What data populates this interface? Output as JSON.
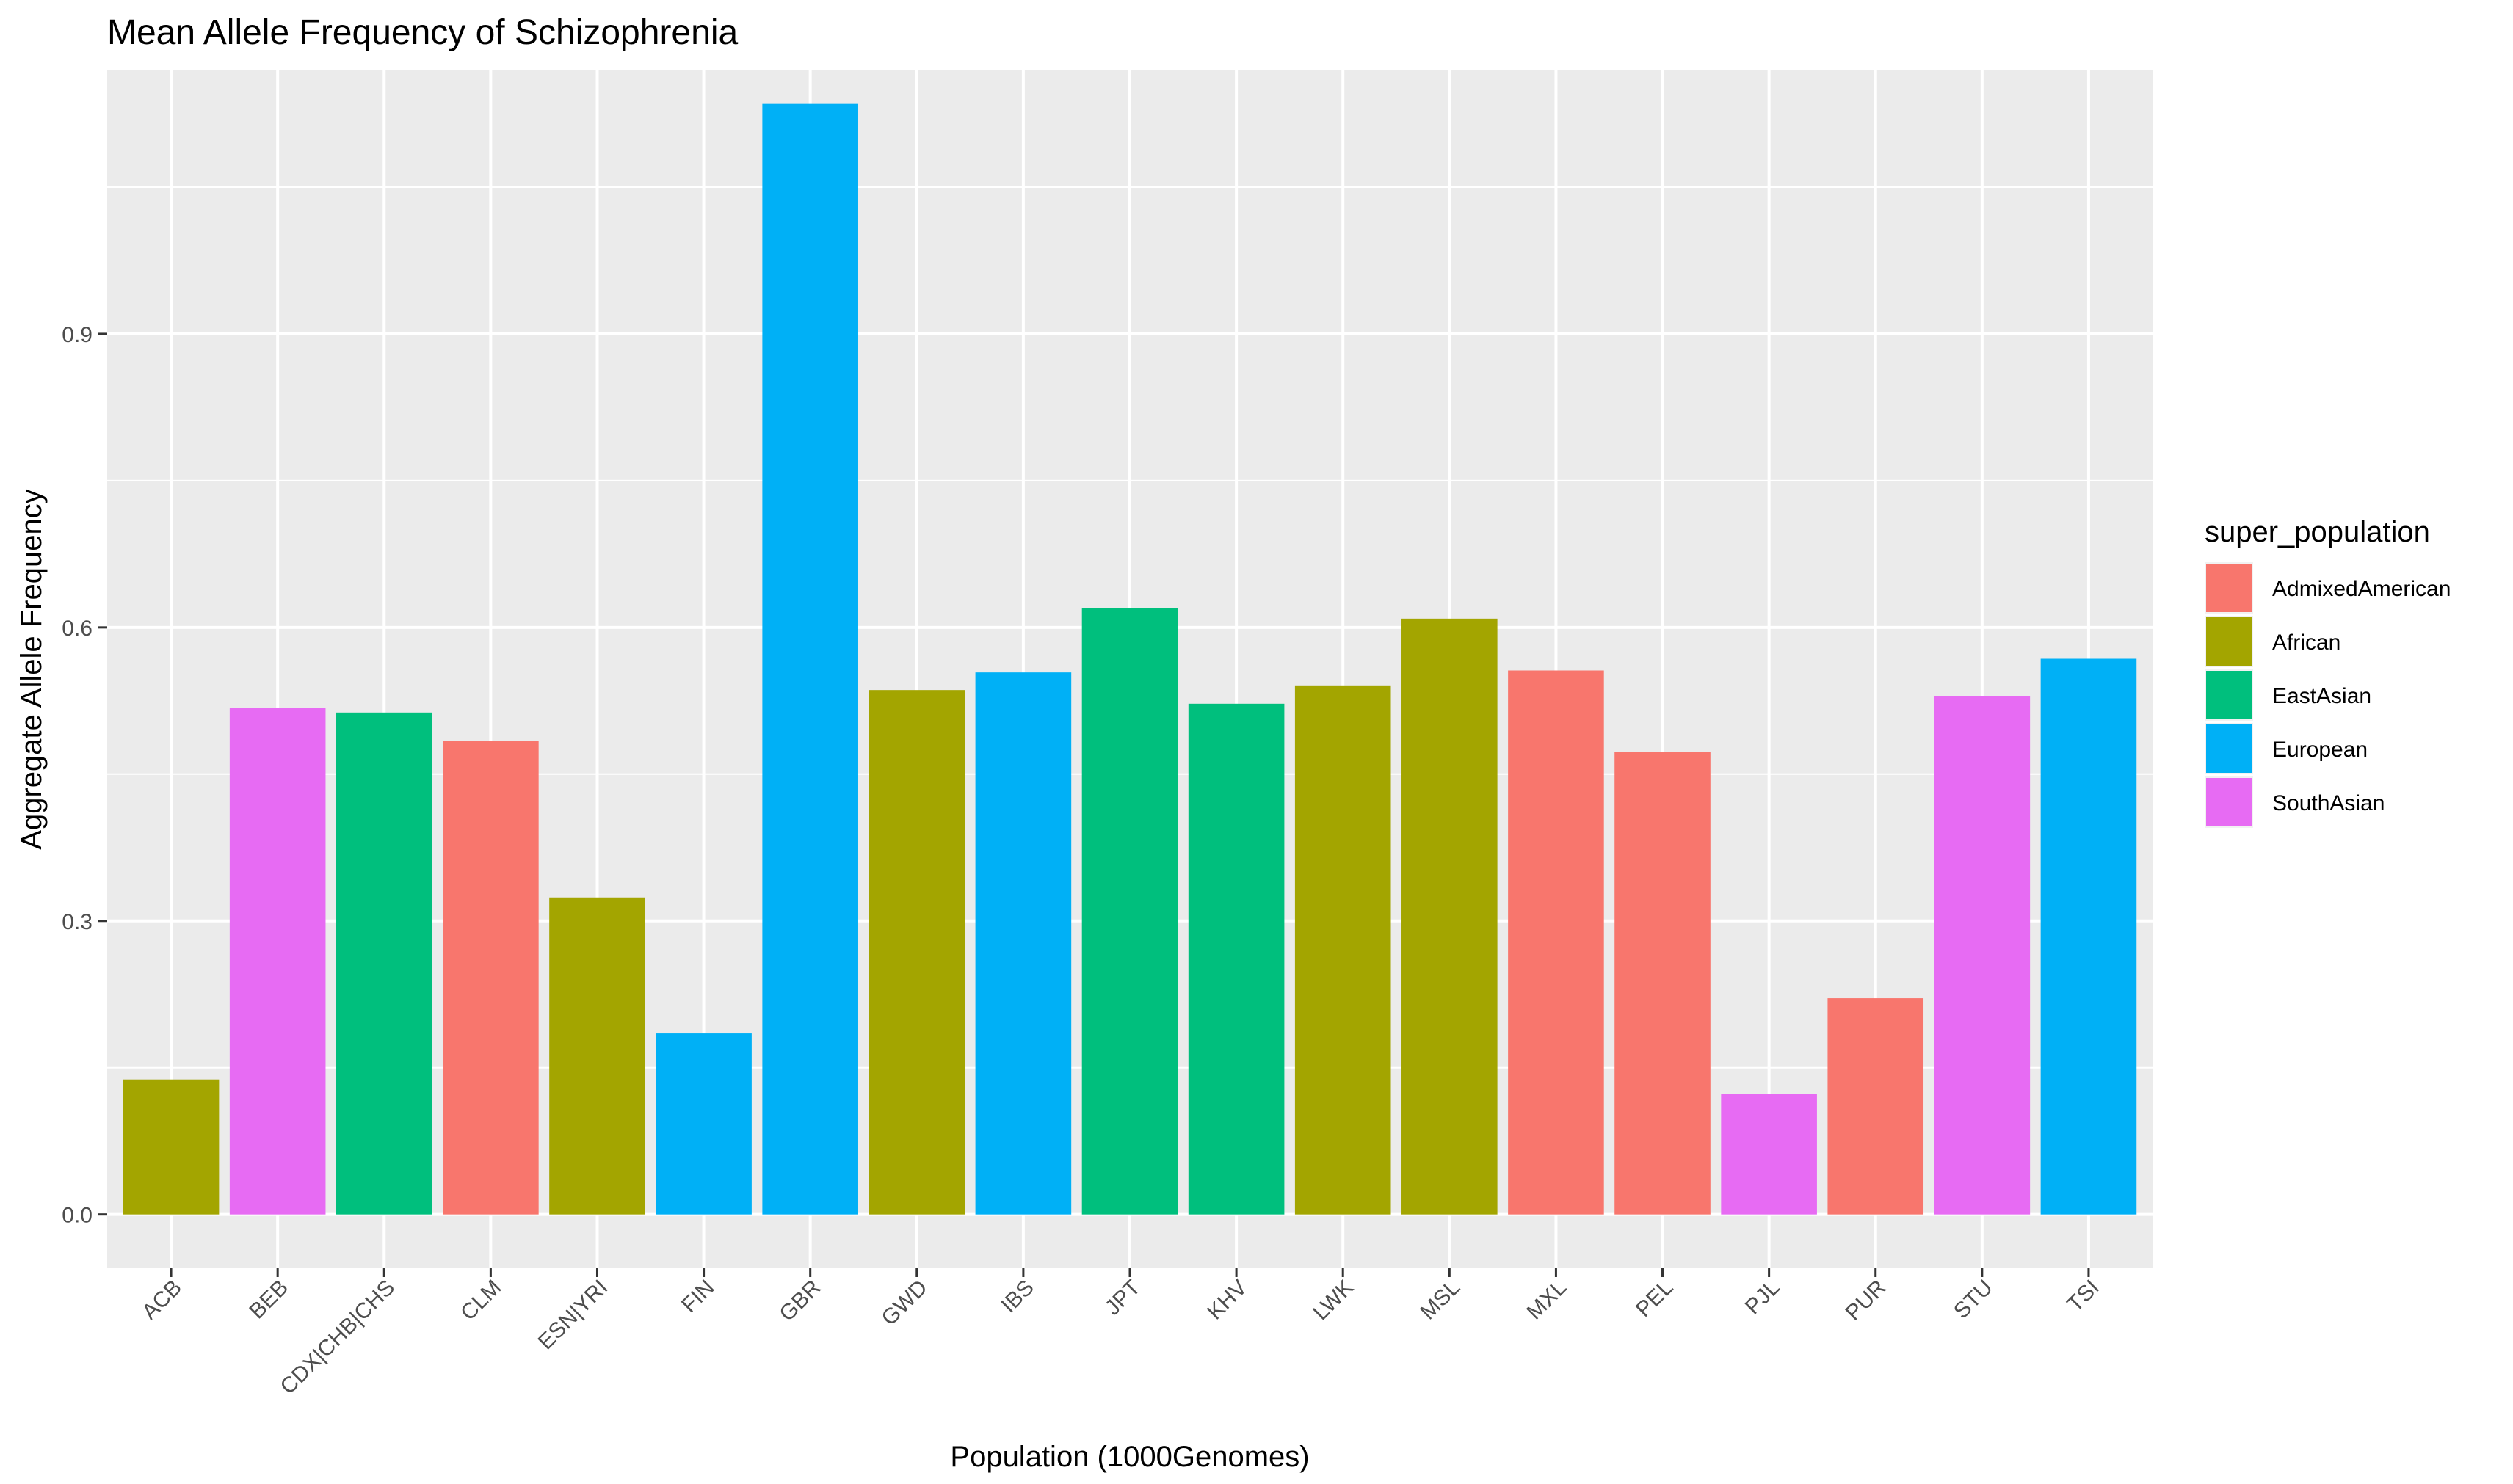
{
  "chart_data": {
    "type": "bar",
    "title": "Mean Allele Frequency of Schizophrenia",
    "xlabel": "Population (1000Genomes)",
    "ylabel": "Aggregate Allele Frequency",
    "ylim": [
      -0.055,
      1.17
    ],
    "yticks": [
      0.0,
      0.3,
      0.6,
      0.9
    ],
    "ytick_labels": [
      "0.0",
      "0.3",
      "0.6",
      "0.9"
    ],
    "grid": true,
    "legend": {
      "title": "super_population",
      "placement": "right",
      "entries": [
        {
          "label": "AdmixedAmerican",
          "color": "#F8766D"
        },
        {
          "label": "African",
          "color": "#A3A500"
        },
        {
          "label": "EastAsian",
          "color": "#00BF7D"
        },
        {
          "label": "European",
          "color": "#00B0F6"
        },
        {
          "label": "SouthAsian",
          "color": "#E76BF3"
        }
      ]
    },
    "categories": [
      "ACB",
      "BEB",
      "CDX|CHB|CHS",
      "CLM",
      "ESN|YRI",
      "FIN",
      "GBR",
      "GWD",
      "IBS",
      "JPT",
      "KHV",
      "LWK",
      "MSL",
      "MXL",
      "PEL",
      "PJL",
      "PUR",
      "STU",
      "TSI"
    ],
    "values": [
      0.138,
      0.518,
      0.513,
      0.484,
      0.324,
      0.185,
      1.135,
      0.536,
      0.554,
      0.62,
      0.522,
      0.54,
      0.609,
      0.556,
      0.473,
      0.123,
      0.221,
      0.53,
      0.568
    ],
    "groups": [
      "African",
      "SouthAsian",
      "EastAsian",
      "AdmixedAmerican",
      "African",
      "European",
      "European",
      "African",
      "European",
      "EastAsian",
      "EastAsian",
      "African",
      "African",
      "AdmixedAmerican",
      "AdmixedAmerican",
      "SouthAsian",
      "AdmixedAmerican",
      "SouthAsian",
      "European"
    ],
    "colors": {
      "AdmixedAmerican": "#F8766D",
      "African": "#A3A500",
      "EastAsian": "#00BF7D",
      "European": "#00B0F6",
      "SouthAsian": "#E76BF3",
      "panel_background": "#EBEBEB",
      "grid": "#FFFFFF"
    }
  }
}
